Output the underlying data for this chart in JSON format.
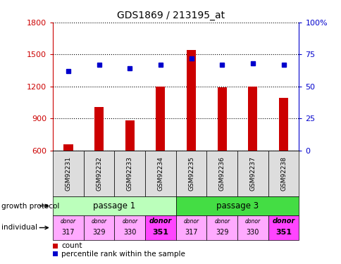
{
  "title": "GDS1869 / 213195_at",
  "samples": [
    "GSM92231",
    "GSM92232",
    "GSM92233",
    "GSM92234",
    "GSM92235",
    "GSM92236",
    "GSM92237",
    "GSM92238"
  ],
  "counts": [
    660,
    1010,
    880,
    1200,
    1540,
    1190,
    1200,
    1090
  ],
  "percentile_ranks": [
    62,
    67,
    64,
    67,
    72,
    67,
    68,
    67
  ],
  "ylim_left": [
    600,
    1800
  ],
  "ylim_right": [
    0,
    100
  ],
  "yticks_left": [
    600,
    900,
    1200,
    1500,
    1800
  ],
  "yticks_right": [
    0,
    25,
    50,
    75,
    100
  ],
  "bar_color": "#cc0000",
  "dot_color": "#0000cc",
  "passage_groups": [
    {
      "label": "passage 1",
      "start": 0,
      "end": 3,
      "color": "#bbffbb"
    },
    {
      "label": "passage 3",
      "start": 4,
      "end": 7,
      "color": "#44dd44"
    }
  ],
  "individual_donors": [
    "317",
    "329",
    "330",
    "351",
    "317",
    "329",
    "330",
    "351"
  ],
  "individual_bold": [
    false,
    false,
    false,
    true,
    false,
    false,
    false,
    true
  ],
  "individual_colors": [
    "#ffaaff",
    "#ffaaff",
    "#ffaaff",
    "#ff44ff",
    "#ffaaff",
    "#ffaaff",
    "#ffaaff",
    "#ff44ff"
  ],
  "left_label_growth": "growth protocol",
  "left_label_individual": "individual",
  "legend_count": "count",
  "legend_percentile": "percentile rank within the sample",
  "left_axis_color": "#cc0000",
  "right_axis_color": "#0000cc",
  "grid_color": "#000000",
  "sample_box_color": "#dddddd",
  "bar_width": 0.3
}
